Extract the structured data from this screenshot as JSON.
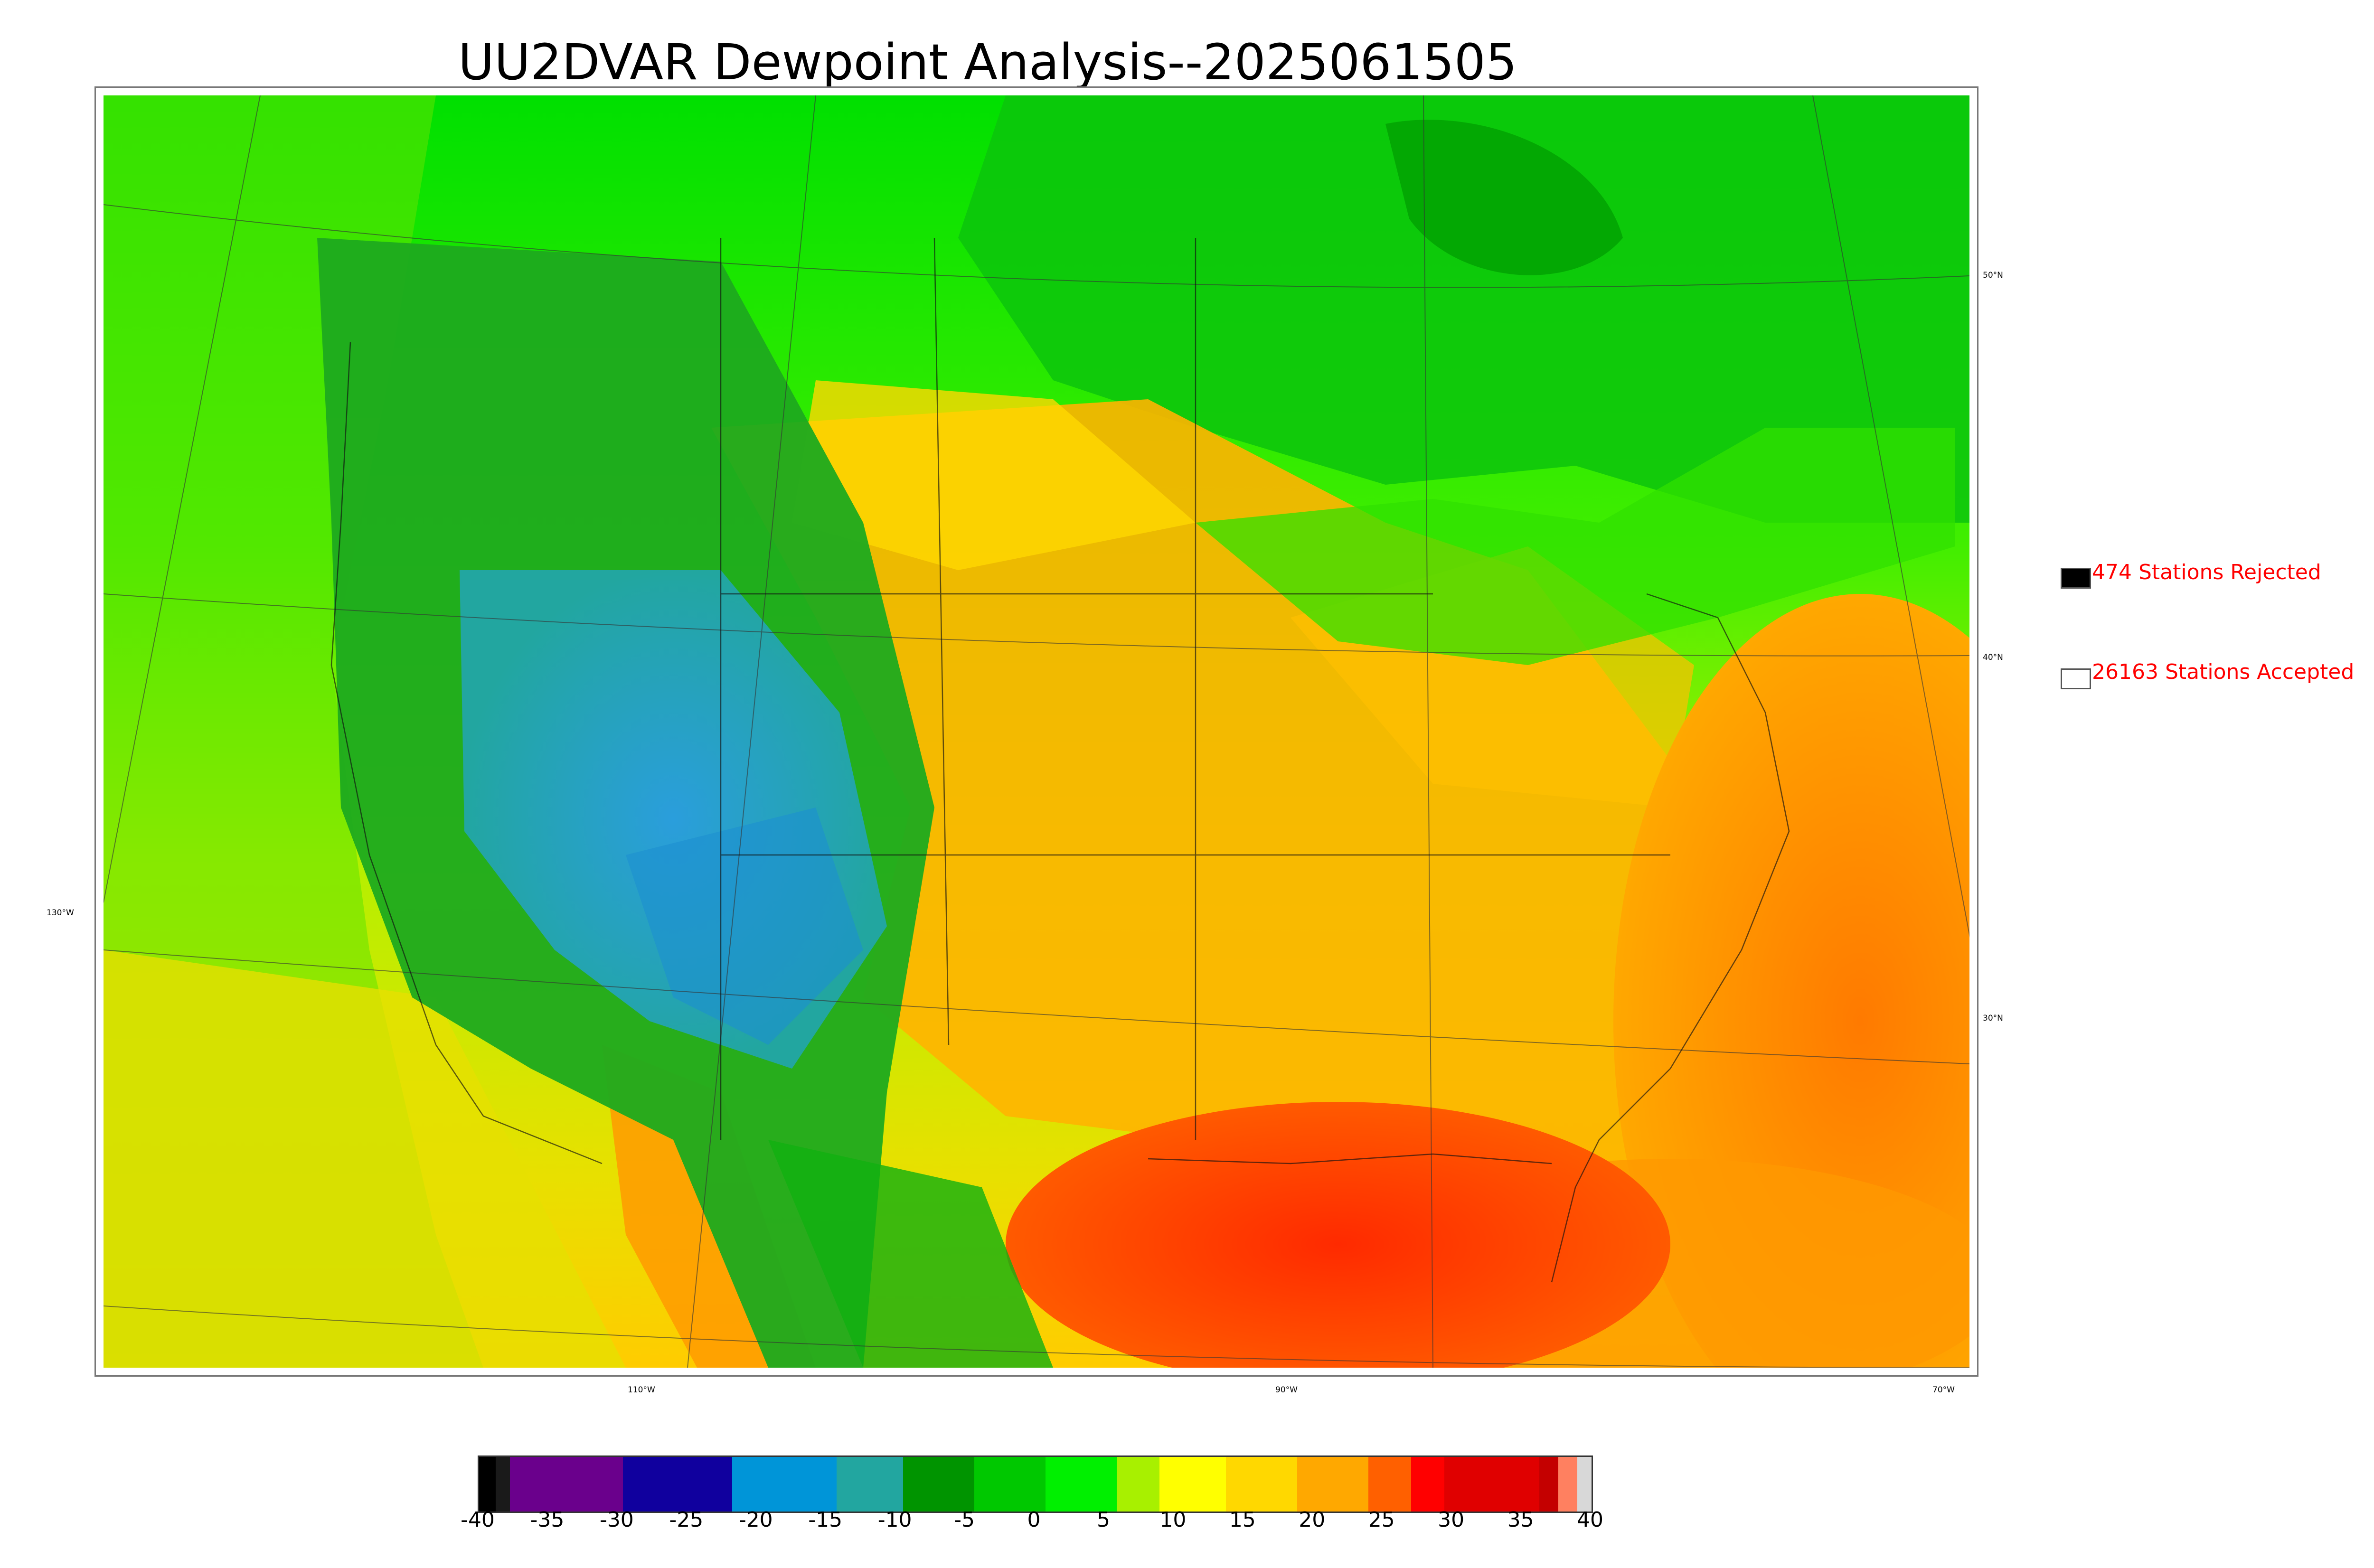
{
  "title": "UU2DVAR Dewpoint Analysis--2025061505",
  "legend": {
    "rejected_label": "474 Stations Rejected",
    "accepted_label": "26163 Stations Accepted",
    "rejected_color": "#000000",
    "accepted_color": "#ffffff"
  },
  "graticule": {
    "lat_labels": [
      "50°N",
      "40°N",
      "30°N"
    ],
    "lon_labels": [
      "130°W",
      "110°W",
      "90°W",
      "70°W"
    ]
  },
  "colorbar": {
    "ticks": [
      "-40",
      "-35",
      "-30",
      "-25",
      "-20",
      "-15",
      "-10",
      "-5",
      "0",
      "5",
      "10",
      "15",
      "20",
      "25",
      "30",
      "35",
      "40"
    ],
    "range": [
      -40,
      40
    ],
    "colors": [
      "#000000",
      "#111111",
      "#6a008c",
      "#6a008c",
      "#10009e",
      "#10009e",
      "#0095d8",
      "#0095d8",
      "#22a6a0",
      "#009400",
      "#00c800",
      "#00f000",
      "#a8f000",
      "#ffff00",
      "#ffd800",
      "#ffa800",
      "#ff6000",
      "#ff0000",
      "#e00000",
      "#c40000",
      "#ff8060",
      "#d8d8d8"
    ]
  },
  "regions": {
    "ocean_pacific_color": "#a0e400",
    "ocean_atlantic_color": "#ffa500",
    "gulf_color": "#ff3c00",
    "west_dry_color": "#2aa0a0",
    "rockies_color": "#1ea21e",
    "plains_color": "#ffb400",
    "canada_color": "#10d810"
  }
}
